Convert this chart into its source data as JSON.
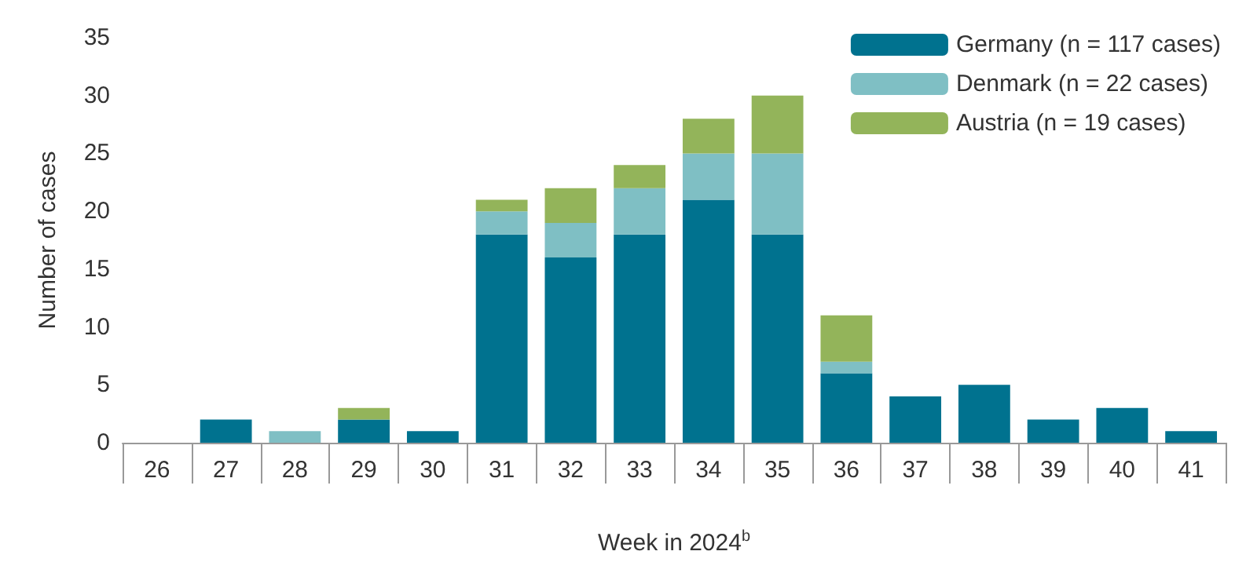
{
  "chart_data": {
    "type": "bar",
    "stacked": true,
    "xlabel": "Week in 2024$^{b}$",
    "ylabel": "Number of cases",
    "categories": [
      "26",
      "27",
      "28",
      "29",
      "30",
      "31",
      "32",
      "33",
      "34",
      "35",
      "36",
      "37",
      "38",
      "39",
      "40",
      "41"
    ],
    "series": [
      {
        "name": "Germany (n = 117 cases)",
        "color": "#00728f",
        "values": [
          0,
          2,
          0,
          2,
          1,
          18,
          16,
          18,
          21,
          18,
          6,
          4,
          5,
          2,
          3,
          1
        ]
      },
      {
        "name": "Denmark (n = 22 cases)",
        "color": "#7fbfc4",
        "values": [
          0,
          0,
          1,
          0,
          0,
          2,
          3,
          4,
          4,
          7,
          1,
          0,
          0,
          0,
          0,
          0
        ]
      },
      {
        "name": "Austria (n = 19 cases)",
        "color": "#93b45a",
        "values": [
          0,
          0,
          0,
          1,
          0,
          1,
          3,
          2,
          3,
          5,
          4,
          0,
          0,
          0,
          0,
          0
        ]
      }
    ],
    "ylim": [
      0,
      35
    ],
    "yticks": [
      0,
      5,
      10,
      15,
      20,
      25,
      30,
      35
    ],
    "grid": false,
    "legend": "top right"
  }
}
